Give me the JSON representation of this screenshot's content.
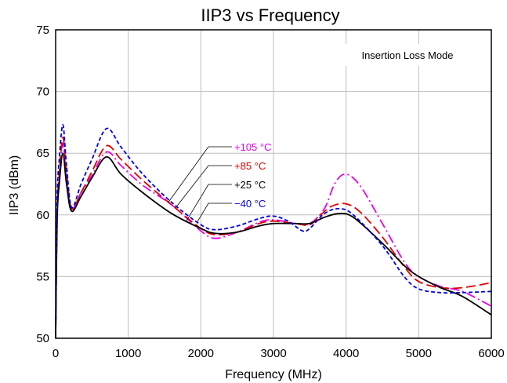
{
  "chart_data": {
    "type": "line",
    "title": "IIP3 vs Frequency",
    "xlabel": "Frequency (MHz)",
    "ylabel": "IIP3 (dBm)",
    "xlim": [
      0,
      6000
    ],
    "ylim": [
      50,
      75
    ],
    "xticks": [
      "0",
      "1000",
      "2000",
      "3000",
      "4000",
      "5000",
      "6000"
    ],
    "yticks": [
      "50",
      "55",
      "60",
      "65",
      "70",
      "75"
    ],
    "grid": true,
    "annotation": "Insertion Loss Mode",
    "legend_placement": "center (leader lines to curves)",
    "series": [
      {
        "name": "+105 °C",
        "color": "#e800e8",
        "dash": "dash-dot",
        "points": [
          [
            0,
            50
          ],
          [
            20,
            60
          ],
          [
            50,
            62.8
          ],
          [
            100,
            65.8
          ],
          [
            150,
            63
          ],
          [
            220,
            60.5
          ],
          [
            350,
            61.8
          ],
          [
            500,
            63.2
          ],
          [
            700,
            65.1
          ],
          [
            900,
            64
          ],
          [
            1200,
            62.4
          ],
          [
            1600,
            60.8
          ],
          [
            2000,
            58.7
          ],
          [
            2200,
            58.1
          ],
          [
            2500,
            58.6
          ],
          [
            2800,
            59.4
          ],
          [
            3000,
            59.6
          ],
          [
            3300,
            59.3
          ],
          [
            3500,
            59.3
          ],
          [
            3700,
            60.5
          ],
          [
            3850,
            62.6
          ],
          [
            4000,
            63.3
          ],
          [
            4200,
            62.3
          ],
          [
            4500,
            59.3
          ],
          [
            4800,
            56.2
          ],
          [
            5000,
            55
          ],
          [
            5300,
            54.2
          ],
          [
            5600,
            53.8
          ],
          [
            6000,
            52.6
          ]
        ]
      },
      {
        "name": "+85 °C",
        "color": "#e00000",
        "dash": "long-dash",
        "points": [
          [
            0,
            50
          ],
          [
            20,
            60
          ],
          [
            50,
            63.3
          ],
          [
            100,
            66.3
          ],
          [
            150,
            63.5
          ],
          [
            220,
            60.5
          ],
          [
            350,
            61.8
          ],
          [
            500,
            63.5
          ],
          [
            700,
            65.6
          ],
          [
            900,
            64.5
          ],
          [
            1200,
            62.8
          ],
          [
            1600,
            60.8
          ],
          [
            2000,
            58.9
          ],
          [
            2200,
            58.4
          ],
          [
            2500,
            58.6
          ],
          [
            2800,
            59.3
          ],
          [
            3000,
            59.5
          ],
          [
            3300,
            59.3
          ],
          [
            3500,
            59.2
          ],
          [
            3650,
            60
          ],
          [
            3800,
            60.7
          ],
          [
            4000,
            60.9
          ],
          [
            4200,
            60.2
          ],
          [
            4500,
            58.2
          ],
          [
            4800,
            55.8
          ],
          [
            5000,
            54.6
          ],
          [
            5300,
            54.1
          ],
          [
            5600,
            54.1
          ],
          [
            6000,
            54.5
          ]
        ]
      },
      {
        "name": "+25 °C",
        "color": "#000000",
        "dash": "solid",
        "points": [
          [
            0,
            50
          ],
          [
            20,
            59.5
          ],
          [
            50,
            62.5
          ],
          [
            100,
            65
          ],
          [
            150,
            62.5
          ],
          [
            220,
            60.3
          ],
          [
            350,
            61.5
          ],
          [
            500,
            63
          ],
          [
            700,
            64.7
          ],
          [
            900,
            63.3
          ],
          [
            1200,
            61.8
          ],
          [
            1600,
            60.1
          ],
          [
            2000,
            58.9
          ],
          [
            2200,
            58.5
          ],
          [
            2500,
            58.6
          ],
          [
            2800,
            59.1
          ],
          [
            3000,
            59.3
          ],
          [
            3300,
            59.3
          ],
          [
            3500,
            59.3
          ],
          [
            3700,
            59.8
          ],
          [
            3900,
            60.1
          ],
          [
            4100,
            59.8
          ],
          [
            4500,
            57.7
          ],
          [
            4800,
            55.9
          ],
          [
            5000,
            55
          ],
          [
            5300,
            54.1
          ],
          [
            5600,
            53.4
          ],
          [
            6000,
            51.9
          ]
        ]
      },
      {
        "name": "−40 °C",
        "color": "#0000e0",
        "dash": "dash",
        "points": [
          [
            0,
            50
          ],
          [
            20,
            61
          ],
          [
            50,
            64.5
          ],
          [
            100,
            67.3
          ],
          [
            150,
            64
          ],
          [
            220,
            60.6
          ],
          [
            350,
            62.5
          ],
          [
            500,
            64.5
          ],
          [
            700,
            67
          ],
          [
            900,
            65.5
          ],
          [
            1200,
            63.3
          ],
          [
            1600,
            61
          ],
          [
            2000,
            59.2
          ],
          [
            2200,
            58.8
          ],
          [
            2500,
            59.1
          ],
          [
            2800,
            59.7
          ],
          [
            3000,
            59.9
          ],
          [
            3200,
            59.5
          ],
          [
            3400,
            58.7
          ],
          [
            3500,
            58.9
          ],
          [
            3700,
            60.1
          ],
          [
            3900,
            60.5
          ],
          [
            4100,
            60
          ],
          [
            4500,
            57.5
          ],
          [
            4800,
            55
          ],
          [
            5000,
            54
          ],
          [
            5300,
            53.7
          ],
          [
            5600,
            53.7
          ],
          [
            6000,
            53.8
          ]
        ]
      }
    ]
  }
}
